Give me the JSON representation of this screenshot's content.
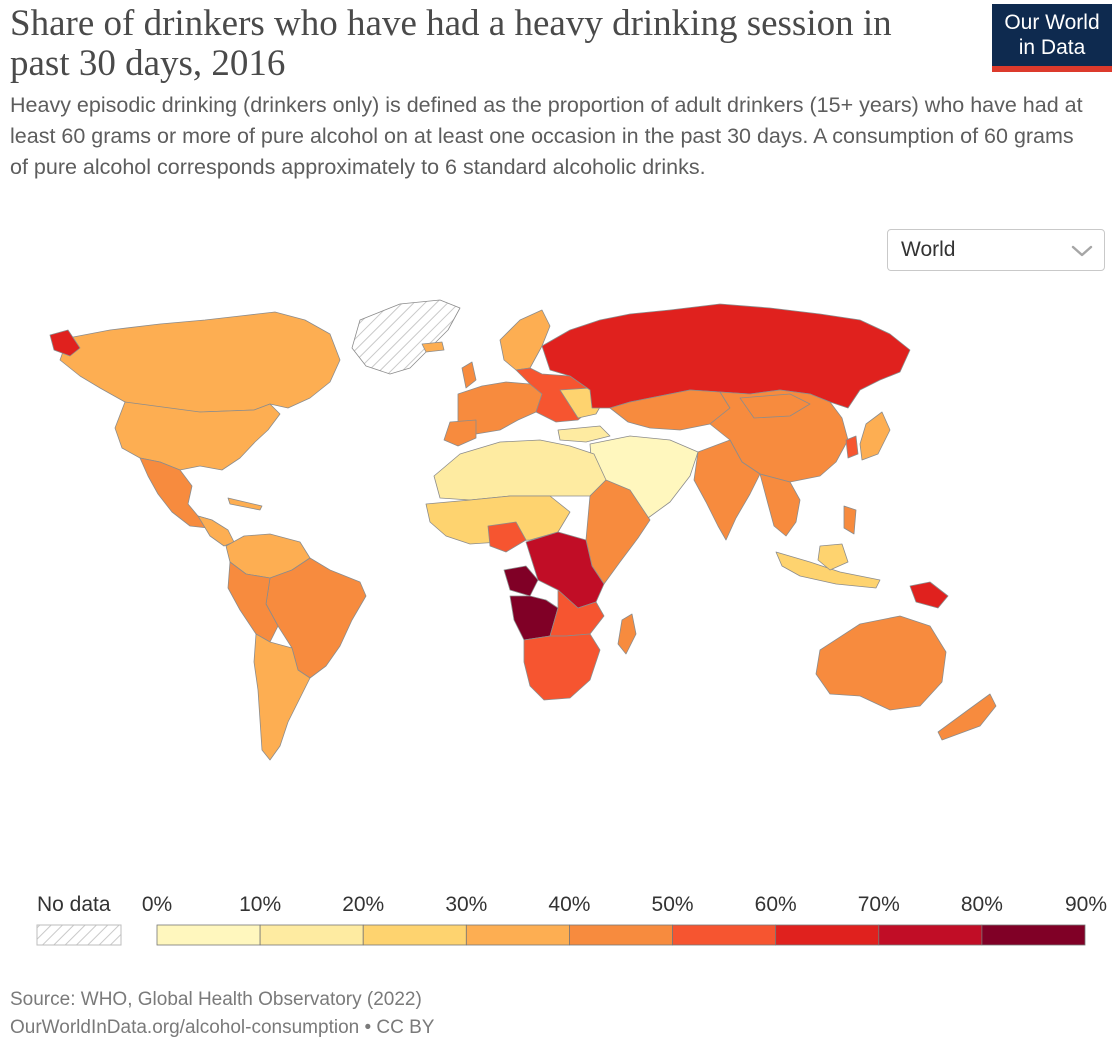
{
  "header": {
    "title": "Share of drinkers who have had a heavy drinking session in past 30 days, 2016",
    "subtitle": "Heavy episodic drinking (drinkers only) is defined as the proportion of adult drinkers (15+ years) who have had at least 60 grams or more of pure alcohol on at least one occasion in the past 30 days. A consumption of 60 grams of pure alcohol corresponds approximately to 6 standard alcoholic drinks.",
    "logo_line1": "Our World",
    "logo_line2": "in Data"
  },
  "controls": {
    "region_selected": "World",
    "chevron_icon": "chevron-down-icon"
  },
  "map": {
    "projection": "world",
    "no_data_pattern": "diagonal-hatch",
    "regions": [
      {
        "region": "Russia",
        "bin": "60-70%",
        "color": "#e0211e"
      },
      {
        "region": "Canada",
        "bin": "30-40%",
        "color": "#fdae52"
      },
      {
        "region": "United States",
        "bin": "30-40%",
        "color": "#fdae52"
      },
      {
        "region": "Greenland",
        "bin": "no data",
        "color": "#ffffff"
      },
      {
        "region": "Mexico",
        "bin": "40-50%",
        "color": "#f78b3e"
      },
      {
        "region": "Brazil",
        "bin": "40-50%",
        "color": "#f78b3e"
      },
      {
        "region": "Argentina",
        "bin": "30-40%",
        "color": "#fdae52"
      },
      {
        "region": "Democratic Republic of Congo",
        "bin": "70-80%",
        "color": "#c10d26"
      },
      {
        "region": "Angola",
        "bin": "80-90%",
        "color": "#800026"
      },
      {
        "region": "Southern Africa",
        "bin": "50-60%",
        "color": "#f65530"
      },
      {
        "region": "North Africa",
        "bin": "10-20%",
        "color": "#feeba1"
      },
      {
        "region": "Middle East",
        "bin": "0-10%",
        "color": "#fff7be"
      },
      {
        "region": "China",
        "bin": "40-50%",
        "color": "#f78b3e"
      },
      {
        "region": "India",
        "bin": "40-50%",
        "color": "#f78b3e"
      },
      {
        "region": "Indonesia",
        "bin": "20-30%",
        "color": "#fed36f"
      },
      {
        "region": "Papua New Guinea",
        "bin": "60-70%",
        "color": "#e0211e"
      },
      {
        "region": "Australia",
        "bin": "40-50%",
        "color": "#f78b3e"
      },
      {
        "region": "New Zealand",
        "bin": "40-50%",
        "color": "#f78b3e"
      }
    ]
  },
  "legend": {
    "no_data_label": "No data",
    "ticks": [
      "0%",
      "10%",
      "20%",
      "30%",
      "40%",
      "50%",
      "60%",
      "70%",
      "80%",
      "90%"
    ],
    "colors": [
      "#fff7be",
      "#feeba1",
      "#fed36f",
      "#fdae52",
      "#f78b3e",
      "#f65530",
      "#e0211e",
      "#c10d26",
      "#800026"
    ]
  },
  "footer": {
    "source": "Source: WHO, Global Health Observatory (2022)",
    "url": "OurWorldInData.org/alcohol-consumption • CC BY"
  }
}
